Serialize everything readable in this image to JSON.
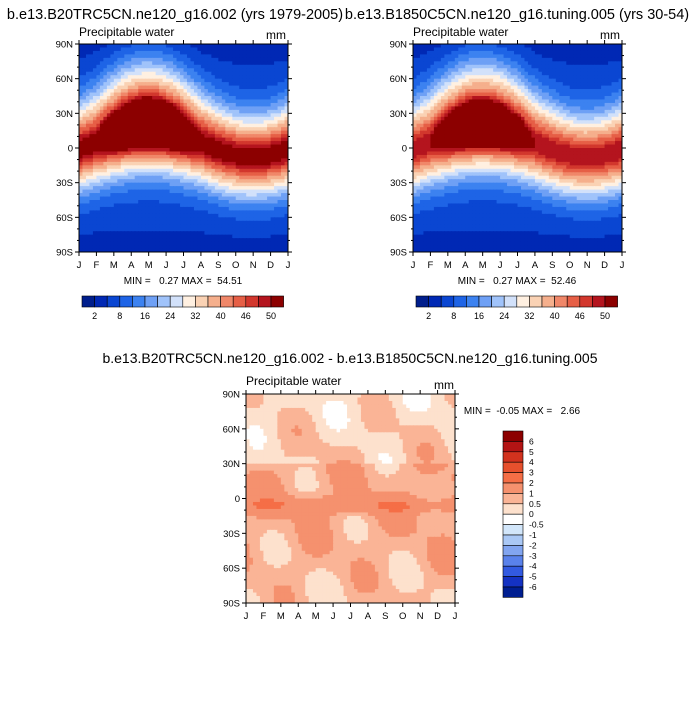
{
  "figure": {
    "months": [
      "J",
      "F",
      "M",
      "A",
      "M",
      "J",
      "J",
      "A",
      "S",
      "O",
      "N",
      "D",
      "J"
    ],
    "lat_ticks": [
      "90N",
      "60N",
      "30N",
      "0",
      "30S",
      "60S",
      "90S"
    ]
  },
  "chart_data": [
    {
      "type": "heatmap",
      "title": "b.e13.B20TRC5CN.ne120_g16.002 (yrs 1979-2005)",
      "variable": "Precipitable water",
      "units": "mm",
      "xlabel": "",
      "ylabel": "",
      "x_ticks": [
        "J",
        "F",
        "M",
        "A",
        "M",
        "J",
        "J",
        "A",
        "S",
        "O",
        "N",
        "D",
        "J"
      ],
      "y_ticks": [
        "90N",
        "60N",
        "30N",
        "0",
        "30S",
        "60S",
        "90S"
      ],
      "ylim": [
        -90,
        90
      ],
      "stats": "MIN =   0.27 MAX =  54.51",
      "colorbar": {
        "orientation": "horizontal",
        "labels": [
          "2",
          "8",
          "16",
          "24",
          "32",
          "40",
          "46",
          "50"
        ],
        "colors": [
          "#001e8c",
          "#0028b4",
          "#0a46d2",
          "#1e64e6",
          "#3c82f0",
          "#6ea0f5",
          "#a0c3fa",
          "#d2e1fa",
          "#fff0e1",
          "#fad2b4",
          "#f5af8c",
          "#f08769",
          "#e65f46",
          "#d2372d",
          "#b4141e",
          "#8c0000"
        ]
      }
    },
    {
      "type": "heatmap",
      "title": "b.e13.B1850C5CN.ne120_g16.tuning.005 (yrs 30-54)",
      "variable": "Precipitable water",
      "units": "mm",
      "xlabel": "",
      "ylabel": "",
      "x_ticks": [
        "J",
        "F",
        "M",
        "A",
        "M",
        "J",
        "J",
        "A",
        "S",
        "O",
        "N",
        "D",
        "J"
      ],
      "y_ticks": [
        "90N",
        "60N",
        "30N",
        "0",
        "30S",
        "60S",
        "90S"
      ],
      "ylim": [
        -90,
        90
      ],
      "stats": "MIN =   0.27 MAX =  52.46",
      "colorbar": {
        "orientation": "horizontal",
        "labels": [
          "2",
          "8",
          "16",
          "24",
          "32",
          "40",
          "46",
          "50"
        ],
        "colors": [
          "#001e8c",
          "#0028b4",
          "#0a46d2",
          "#1e64e6",
          "#3c82f0",
          "#6ea0f5",
          "#a0c3fa",
          "#d2e1fa",
          "#fff0e1",
          "#fad2b4",
          "#f5af8c",
          "#f08769",
          "#e65f46",
          "#d2372d",
          "#b4141e",
          "#8c0000"
        ]
      }
    },
    {
      "type": "heatmap",
      "title": "b.e13.B20TRC5CN.ne120_g16.002 - b.e13.B1850C5CN.ne120_g16.tuning.005",
      "variable": "Precipitable water",
      "units": "mm",
      "xlabel": "",
      "ylabel": "",
      "x_ticks": [
        "J",
        "F",
        "M",
        "A",
        "M",
        "J",
        "J",
        "A",
        "S",
        "O",
        "N",
        "D",
        "J"
      ],
      "y_ticks": [
        "90N",
        "60N",
        "30N",
        "0",
        "30S",
        "60S",
        "90S"
      ],
      "ylim": [
        -90,
        90
      ],
      "stats": "MIN =  -0.05 MAX =   2.66",
      "colorbar": {
        "orientation": "vertical",
        "labels": [
          "6",
          "5",
          "4",
          "3",
          "2",
          "1",
          "0.5",
          "0",
          "-0.5",
          "-1",
          "-2",
          "-3",
          "-4",
          "-5",
          "-6"
        ],
        "colors": [
          "#8c0000",
          "#b41414",
          "#d2321e",
          "#e6502d",
          "#f56e46",
          "#f5916e",
          "#fab496",
          "#fde1cd",
          "#ffffff",
          "#d2e6fa",
          "#aac8f5",
          "#82a5f0",
          "#5a82eb",
          "#325ae1",
          "#1432c3",
          "#001e91"
        ]
      }
    }
  ]
}
